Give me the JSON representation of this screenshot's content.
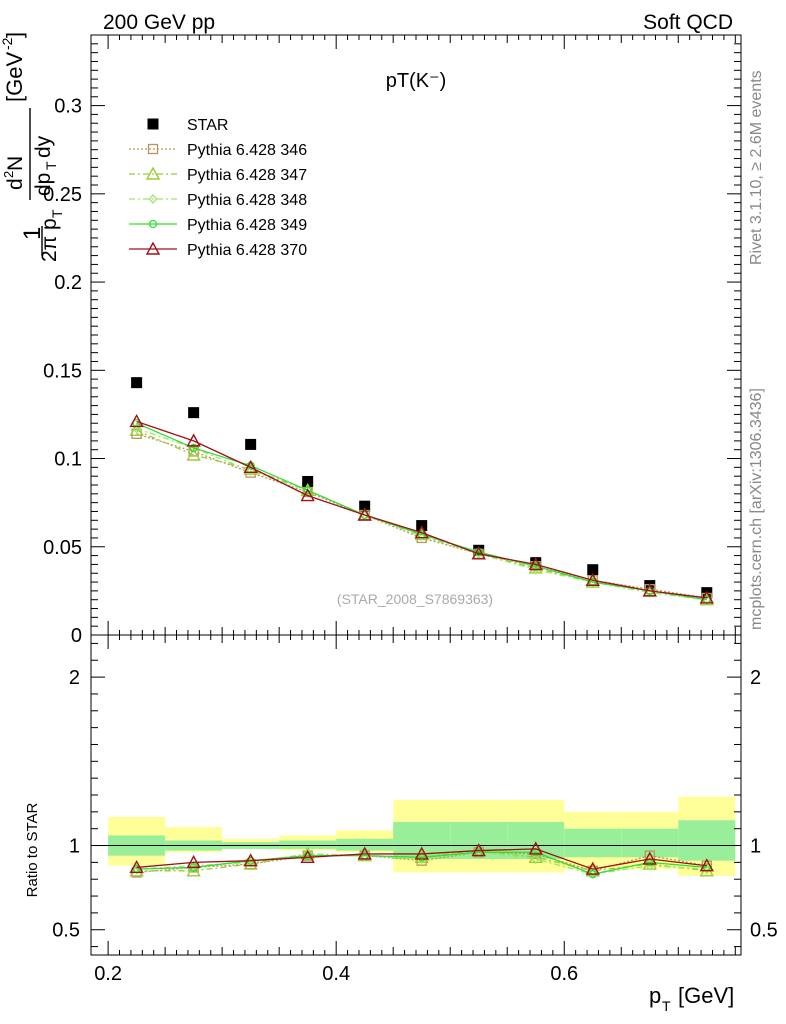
{
  "header": {
    "left": "200 GeV pp",
    "right": "Soft QCD"
  },
  "side_text": {
    "rivet": "Rivet 3.1.10, ≥ 2.6M events",
    "site": "mcplots.cern.ch [arXiv:1306.3436]"
  },
  "chart_data": [
    {
      "type": "scatter",
      "title": "pT(K⁻)",
      "watermark": "(STAR_2008_S7869363)",
      "ylabel": "1/(2π p_T) d²N/(dp_T dy) [GeV⁻²]",
      "xlim": [
        0.185,
        0.755
      ],
      "ylim": [
        0,
        0.34
      ],
      "x": [
        0.225,
        0.275,
        0.325,
        0.375,
        0.425,
        0.475,
        0.525,
        0.575,
        0.625,
        0.675,
        0.725
      ],
      "y_ticks": [
        "0",
        "0.05",
        "0.1",
        "0.15",
        "0.2",
        "0.25",
        "0.3"
      ],
      "series": [
        {
          "name": "STAR",
          "color": "#000000",
          "marker": "square",
          "values": [
            0.143,
            0.126,
            0.108,
            0.087,
            0.073,
            0.062,
            0.048,
            0.041,
            0.037,
            0.028,
            0.024
          ]
        },
        {
          "name": "Pythia 6.428 346",
          "color": "#b8965a",
          "marker": "open-square",
          "values": [
            0.114,
            0.104,
            0.092,
            0.081,
            0.068,
            0.055,
            0.046,
            0.039,
            0.031,
            0.026,
            0.021
          ]
        },
        {
          "name": "Pythia 6.428 347",
          "color": "#9acd32",
          "marker": "open-triangle",
          "values": [
            0.116,
            0.102,
            0.094,
            0.082,
            0.068,
            0.057,
            0.046,
            0.038,
            0.03,
            0.025,
            0.02
          ]
        },
        {
          "name": "Pythia 6.428 348",
          "color": "#9ae66b",
          "marker": "diamond",
          "values": [
            0.117,
            0.106,
            0.093,
            0.082,
            0.068,
            0.056,
            0.046,
            0.037,
            0.03,
            0.024,
            0.02
          ]
        },
        {
          "name": "Pythia 6.428 349",
          "color": "#33dd33",
          "marker": "circle",
          "values": [
            0.12,
            0.106,
            0.096,
            0.082,
            0.068,
            0.057,
            0.047,
            0.039,
            0.03,
            0.025,
            0.02
          ]
        },
        {
          "name": "Pythia 6.428 370",
          "color": "#a0101a",
          "marker": "open-triangle",
          "values": [
            0.121,
            0.11,
            0.095,
            0.079,
            0.068,
            0.058,
            0.046,
            0.04,
            0.031,
            0.025,
            0.021
          ]
        }
      ]
    },
    {
      "type": "line",
      "ylabel": "Ratio to STAR",
      "xlabel": "p_T [GeV]",
      "xlim": [
        0.185,
        0.755
      ],
      "ylim": [
        0.35,
        2.25
      ],
      "x_ticks": [
        "0.2",
        "0.4",
        "0.6"
      ],
      "y_ticks": [
        "0.5",
        "1",
        "2"
      ],
      "bins": [
        [
          0.2,
          0.25
        ],
        [
          0.25,
          0.3
        ],
        [
          0.3,
          0.35
        ],
        [
          0.35,
          0.4
        ],
        [
          0.4,
          0.45
        ],
        [
          0.45,
          0.5
        ],
        [
          0.5,
          0.55
        ],
        [
          0.55,
          0.6
        ],
        [
          0.6,
          0.65
        ],
        [
          0.65,
          0.7
        ],
        [
          0.7,
          0.75
        ]
      ],
      "band_inner": [
        [
          0.94,
          1.06
        ],
        [
          0.97,
          1.03
        ],
        [
          0.98,
          1.02
        ],
        [
          0.98,
          1.03
        ],
        [
          0.97,
          1.04
        ],
        [
          0.92,
          1.14
        ],
        [
          0.92,
          1.14
        ],
        [
          0.92,
          1.14
        ],
        [
          0.93,
          1.1
        ],
        [
          0.93,
          1.1
        ],
        [
          0.91,
          1.15
        ]
      ],
      "band_outer": [
        [
          0.88,
          1.17
        ],
        [
          0.96,
          1.11
        ],
        [
          0.98,
          1.04
        ],
        [
          0.97,
          1.06
        ],
        [
          0.96,
          1.09
        ],
        [
          0.84,
          1.27
        ],
        [
          0.84,
          1.27
        ],
        [
          0.84,
          1.27
        ],
        [
          0.86,
          1.2
        ],
        [
          0.86,
          1.2
        ],
        [
          0.82,
          1.29
        ]
      ],
      "series": [
        {
          "name": "Pythia 6.428 346",
          "values": [
            0.84,
            0.87,
            0.89,
            0.94,
            0.94,
            0.91,
            0.96,
            0.95,
            0.85,
            0.94,
            0.88
          ]
        },
        {
          "name": "Pythia 6.428 347",
          "values": [
            0.85,
            0.85,
            0.89,
            0.95,
            0.94,
            0.93,
            0.97,
            0.93,
            0.85,
            0.89,
            0.85
          ]
        },
        {
          "name": "Pythia 6.428 348",
          "values": [
            0.86,
            0.88,
            0.9,
            0.95,
            0.94,
            0.92,
            0.96,
            0.92,
            0.83,
            0.88,
            0.86
          ]
        },
        {
          "name": "Pythia 6.428 349",
          "values": [
            0.86,
            0.87,
            0.91,
            0.94,
            0.94,
            0.93,
            0.96,
            0.96,
            0.83,
            0.9,
            0.87
          ]
        },
        {
          "name": "Pythia 6.428 370",
          "values": [
            0.87,
            0.9,
            0.91,
            0.93,
            0.95,
            0.95,
            0.97,
            0.98,
            0.86,
            0.92,
            0.88
          ]
        }
      ]
    }
  ]
}
